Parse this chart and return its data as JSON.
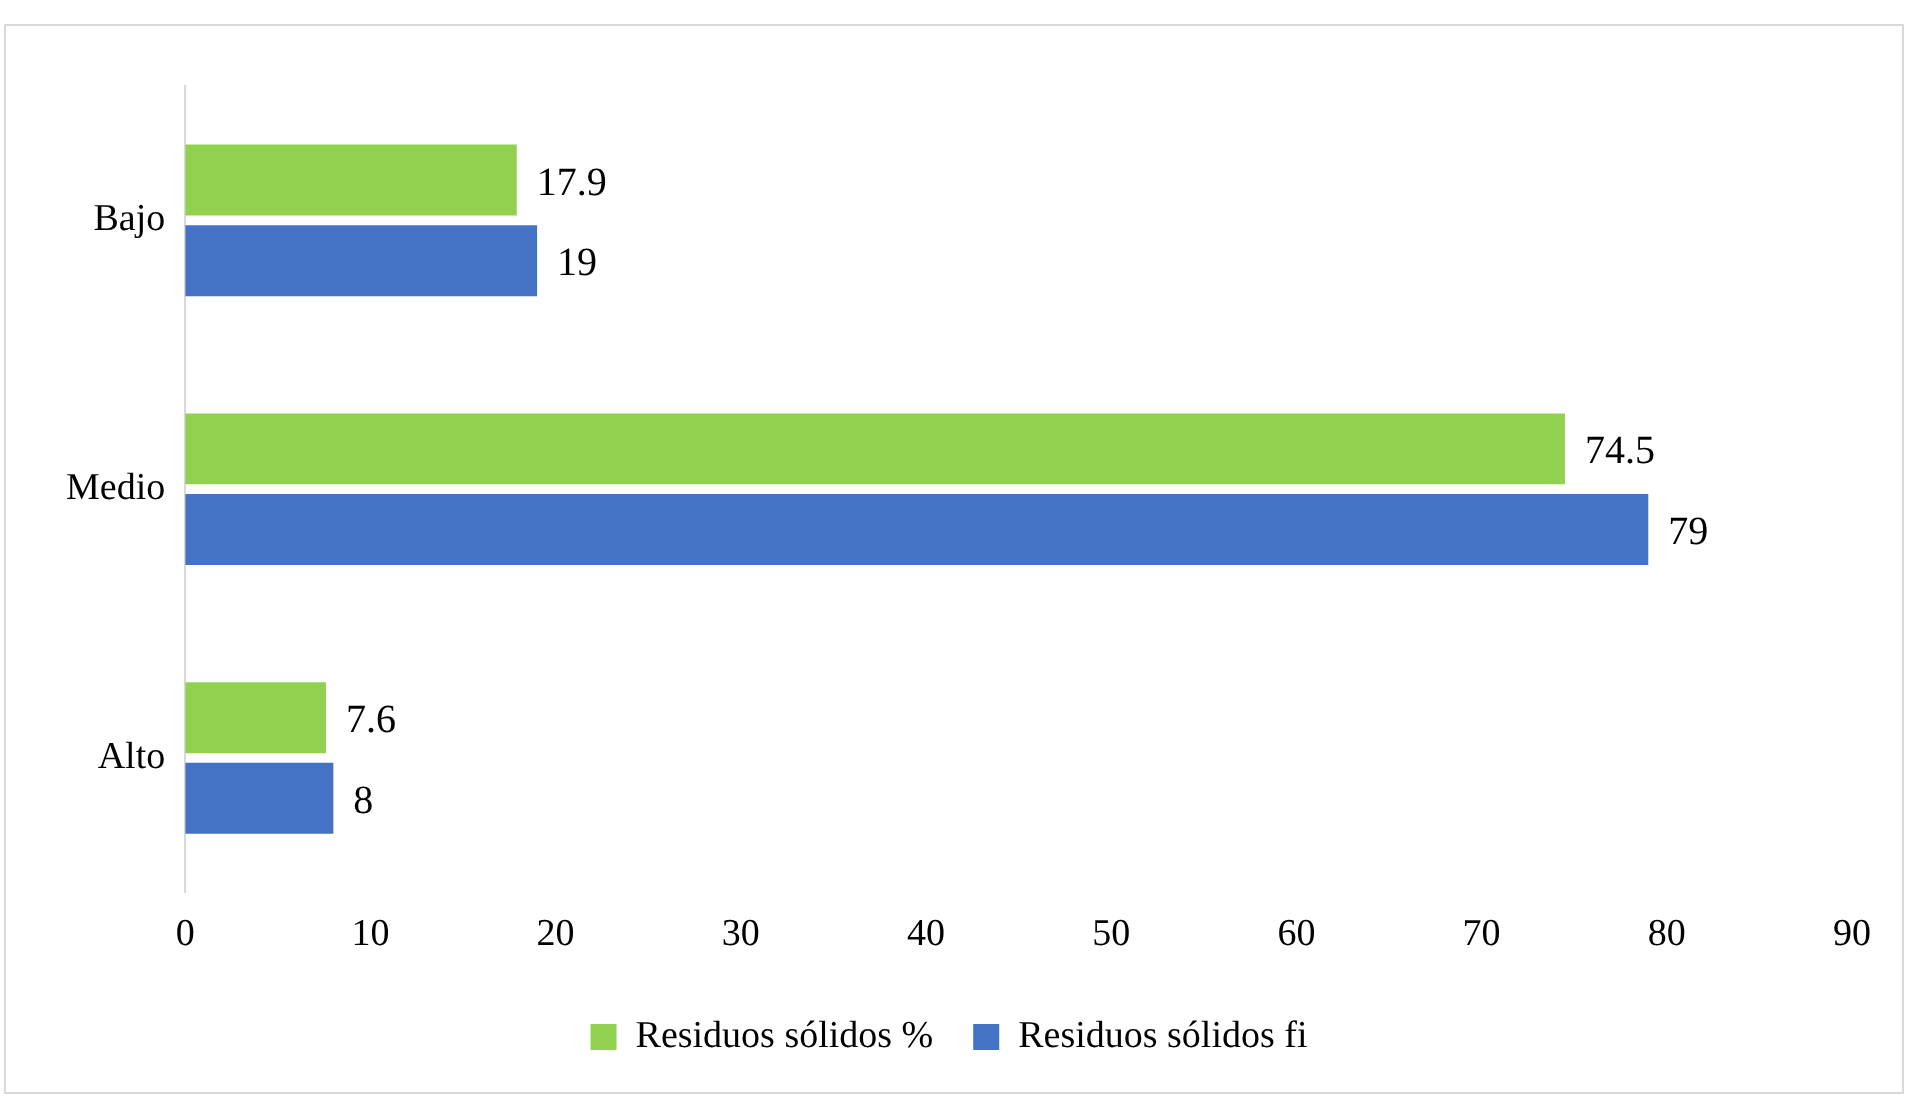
{
  "chart_data": {
    "type": "bar",
    "orientation": "horizontal",
    "categories": [
      "Bajo",
      "Medio",
      "Alto"
    ],
    "series": [
      {
        "name": "Residuos sólidos %",
        "color": "#92d050",
        "values": [
          17.9,
          74.5,
          7.6
        ]
      },
      {
        "name": "Residuos sólidos fi",
        "color": "#4472c4",
        "values": [
          19,
          79,
          8
        ]
      }
    ],
    "xlim": [
      0,
      90
    ],
    "xticks": [
      0,
      10,
      20,
      30,
      40,
      50,
      60,
      70,
      80,
      90
    ],
    "grid": false,
    "legend": "bottom",
    "data_labels": true
  }
}
